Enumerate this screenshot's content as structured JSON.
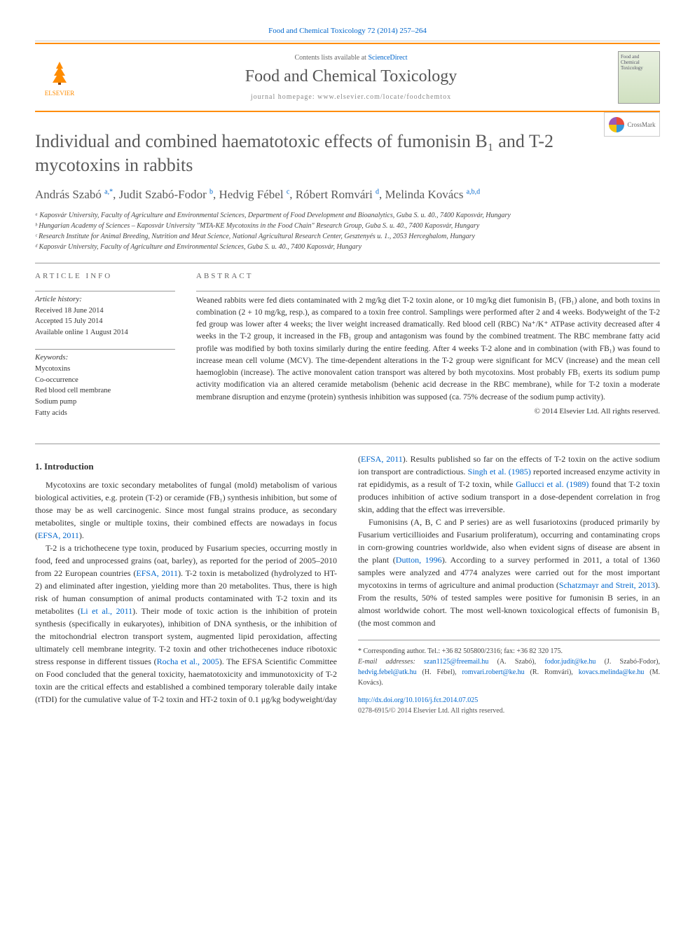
{
  "citation": "Food and Chemical Toxicology 72 (2014) 257–264",
  "header": {
    "contents_prefix": "Contents lists available at ",
    "contents_link": "ScienceDirect",
    "journal_name": "Food and Chemical Toxicology",
    "homepage_prefix": "journal homepage: ",
    "homepage_url": "www.elsevier.com/locate/foodchemtox",
    "publisher": "ELSEVIER",
    "cover_text": "Food and Chemical Toxicology"
  },
  "crossmark": "CrossMark",
  "title": "Individual and combined haematotoxic effects of fumonisin B₁ and T-2 mycotoxins in rabbits",
  "authors_html": "András Szabó <sup>a,*</sup>, Judit Szabó-Fodor <sup>b</sup>, Hedvig Fébel <sup>c</sup>, Róbert Romvári <sup>d</sup>, Melinda Kovács <sup>a,b,d</sup>",
  "affiliations": [
    "ᵃ Kaposvár University, Faculty of Agriculture and Environmental Sciences, Department of Food Development and Bioanalytics, Guba S. u. 40., 7400 Kaposvár, Hungary",
    "ᵇ Hungarian Academy of Sciences – Kaposvár University \"MTA-KE Mycotoxins in the Food Chain\" Research Group, Guba S. u. 40., 7400 Kaposvár, Hungary",
    "ᶜ Research Institute for Animal Breeding, Nutrition and Meat Science, National Agricultural Research Center, Gesztenyés u. 1., 2053 Herceghalom, Hungary",
    "ᵈ Kaposvár University, Faculty of Agriculture and Environmental Sciences, Guba S. u. 40., 7400 Kaposvár, Hungary"
  ],
  "article_info": {
    "heading": "ARTICLE INFO",
    "history_label": "Article history:",
    "history": "Received 18 June 2014\nAccepted 15 July 2014\nAvailable online 1 August 2014",
    "keywords_label": "Keywords:",
    "keywords": "Mycotoxins\nCo-occurrence\nRed blood cell membrane\nSodium pump\nFatty acids"
  },
  "abstract": {
    "heading": "ABSTRACT",
    "text": "Weaned rabbits were fed diets contaminated with 2 mg/kg diet T-2 toxin alone, or 10 mg/kg diet fumonisin B₁ (FB₁) alone, and both toxins in combination (2 + 10 mg/kg, resp.), as compared to a toxin free control. Samplings were performed after 2 and 4 weeks. Bodyweight of the T-2 fed group was lower after 4 weeks; the liver weight increased dramatically. Red blood cell (RBC) Na⁺/K⁺ ATPase activity decreased after 4 weeks in the T-2 group, it increased in the FB₁ group and antagonism was found by the combined treatment. The RBC membrane fatty acid profile was modified by both toxins similarly during the entire feeding. After 4 weeks T-2 alone and in combination (with FB₁) was found to increase mean cell volume (MCV). The time-dependent alterations in the T-2 group were significant for MCV (increase) and the mean cell haemoglobin (increase). The active monovalent cation transport was altered by both mycotoxins. Most probably FB₁ exerts its sodium pump activity modification via an altered ceramide metabolism (behenic acid decrease in the RBC membrane), while for T-2 toxin a moderate membrane disruption and enzyme (protein) synthesis inhibition was supposed (ca. 75% decrease of the sodium pump activity).",
    "copyright": "© 2014 Elsevier Ltd. All rights reserved."
  },
  "body": {
    "section1_heading": "1. Introduction",
    "p1": "Mycotoxins are toxic secondary metabolites of fungal (mold) metabolism of various biological activities, e.g. protein (T-2) or ceramide (FB₁) synthesis inhibition, but some of those may be as well carcinogenic. Since most fungal strains produce, as secondary metabolites, single or multiple toxins, their combined effects are nowadays in focus (",
    "p1_link": "EFSA, 2011",
    "p1_end": ").",
    "p2a": "T-2 is a trichothecene type toxin, produced by Fusarium species, occurring mostly in food, feed and unprocessed grains (oat, barley), as reported for the period of 2005–2010 from 22 European countries (",
    "p2_link1": "EFSA, 2011",
    "p2b": "). T-2 toxin is metabolized (hydrolyzed to HT-2) and eliminated after ingestion, yielding more than 20 metabolites. Thus, there is high risk of human consumption of animal products contaminated with T-2 toxin and its metabolites (",
    "p2_link2": "Li et al., 2011",
    "p2c": "). Their mode of toxic action is the inhibition of protein synthesis (specifically in eukaryotes), inhibition of DNA synthesis, or the inhibition of the mitochondrial electron transport system, augmented lipid peroxidation, affecting ultimately cell membrane integrity. T-2 toxin and other trichothecenes induce ribotoxic stress response in different tissues (",
    "p2_link3": "Rocha et al., 2005",
    "p2d": "). The EFSA Scientific Committee on Food concluded that the general toxicity, haematotoxicity and immunotoxicity of T-2 toxin are the critical effects and established a combined temporary tolerable daily intake (tTDI) for the cumulative value of T-2 toxin and HT-2 toxin of 0.1 μg/kg bodyweight/day (",
    "p2_link4": "EFSA, 2011",
    "p2e": "). Results published so far on the effects of T-2 toxin on the active sodium ion transport are contradictious. ",
    "p2_link5": "Singh et al. (1985)",
    "p2f": " reported increased enzyme activity in rat epididymis, as a result of T-2 toxin, while ",
    "p2_link6": "Gallucci et al. (1989)",
    "p2g": " found that T-2 toxin produces inhibition of active sodium transport in a dose-dependent correlation in frog skin, adding that the effect was irreversible.",
    "p3a": "Fumonisins (A, B, C and P series) are as well fusariotoxins (produced primarily by Fusarium verticillioides and Fusarium proliferatum), occurring and contaminating crops in corn-growing countries worldwide, also when evident signs of disease are absent in the plant (",
    "p3_link1": "Dutton, 1996",
    "p3b": "). According to a survey performed in 2011, a total of 1360 samples were analyzed and 4774 analyzes were carried out for the most important mycotoxins in terms of agriculture and animal production (",
    "p3_link2": "Schatzmayr and Streit, 2013",
    "p3c": "). From the results, 50% of tested samples were positive for fumonisin B series, in an almost worldwide cohort. The most well-known toxicological effects of fumonisin B₁ (the most common and"
  },
  "footnotes": {
    "corresponding": "* Corresponding author. Tel.: +36 82 505800/2316; fax: +36 82 320 175.",
    "emails_label": "E-mail addresses: ",
    "emails": [
      {
        "email": "szan1125@freemail.hu",
        "name": "(A. Szabó)"
      },
      {
        "email": "fodor.judit@ke.hu",
        "name": "(J. Szabó-Fodor)"
      },
      {
        "email": "hedvig.febel@atk.hu",
        "name": "(H. Fébel)"
      },
      {
        "email": "romvari.robert@ke.hu",
        "name": "(R. Romvári)"
      },
      {
        "email": "kovacs.melinda@ke.hu",
        "name": "(M. Kovács)."
      }
    ]
  },
  "doi": {
    "url": "http://dx.doi.org/10.1016/j.fct.2014.07.025",
    "issn_copyright": "0278-6915/© 2014 Elsevier Ltd. All rights reserved."
  }
}
